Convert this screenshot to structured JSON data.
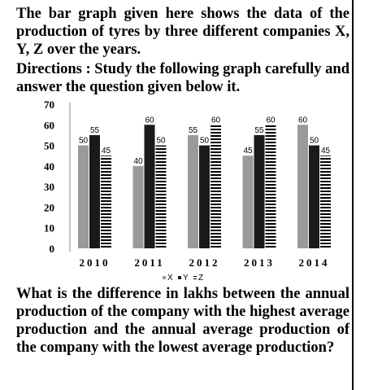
{
  "intro_text": "The bar graph given here shows the data of the production of tyres by three different companies X, Y, Z over the years.",
  "directions_text": "Directions : Study the following graph carefully and answer the question given below it.",
  "question_text": "What is the difference in lakhs between the annual production of the company with the highest average production and the annual average production of the company with the lowest average production?",
  "chart_data": {
    "type": "bar",
    "categories": [
      "2010",
      "2011",
      "2012",
      "2013",
      "2014"
    ],
    "series": [
      {
        "name": "X",
        "values": [
          50,
          40,
          55,
          45,
          60
        ],
        "color": "#9a9a9a",
        "pattern": "solid"
      },
      {
        "name": "Y",
        "values": [
          55,
          60,
          50,
          55,
          50
        ],
        "color": "#1a1a1a",
        "pattern": "solid"
      },
      {
        "name": "Z",
        "values": [
          45,
          50,
          60,
          60,
          45
        ],
        "color": "#000000",
        "pattern": "horizontal-stripes"
      }
    ],
    "yticks": [
      0,
      10,
      20,
      30,
      40,
      50,
      60,
      70
    ],
    "ylim": [
      0,
      70
    ],
    "grid": false,
    "legend_position": "bottom-center",
    "title": "",
    "xlabel": "",
    "ylabel": ""
  }
}
